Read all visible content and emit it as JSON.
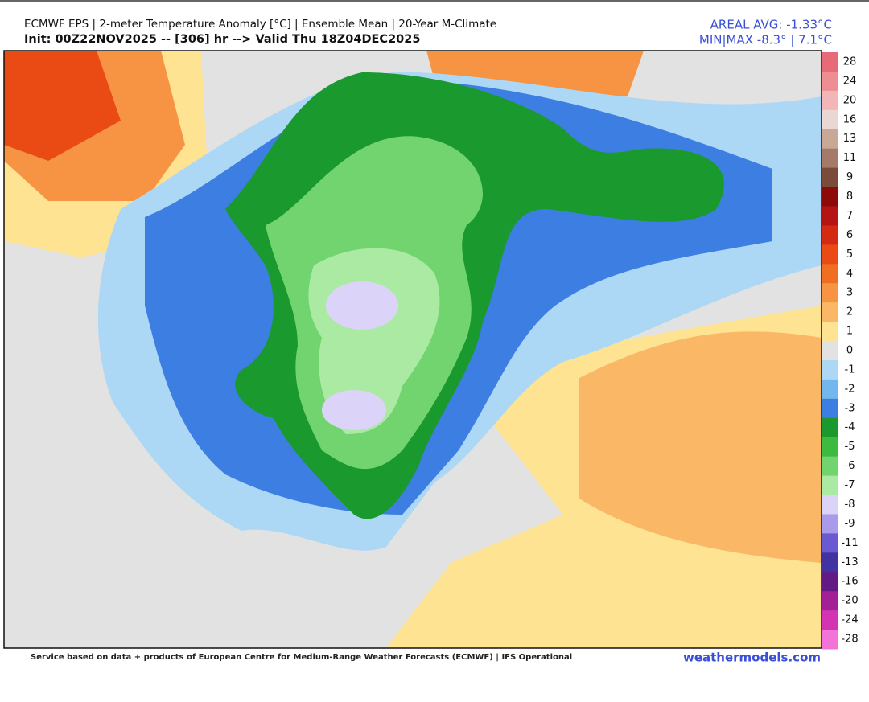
{
  "header": {
    "title": "ECMWF EPS | 2-meter Temperature Anomaly [°C] | Ensemble Mean | 20-Year M-Climate",
    "subtitle": "Init: 00Z22NOV2025 -- [306] hr --> Valid Thu 18Z04DEC2025",
    "areal_avg": "AREAL AVG: -1.33°C",
    "min_max": "MIN|MAX -8.3° | 7.1°C"
  },
  "colorbar": [
    {
      "label": 28,
      "color": "#e66a78"
    },
    {
      "label": 24,
      "color": "#ee8e92"
    },
    {
      "label": 20,
      "color": "#f3b6b6"
    },
    {
      "label": 16,
      "color": "#ead6d2"
    },
    {
      "label": 13,
      "color": "#c9a898"
    },
    {
      "label": 11,
      "color": "#a47a68"
    },
    {
      "label": 9,
      "color": "#7a4a3a"
    },
    {
      "label": 8,
      "color": "#8c0a0a"
    },
    {
      "label": 7,
      "color": "#b41414"
    },
    {
      "label": 6,
      "color": "#d42a12"
    },
    {
      "label": 5,
      "color": "#ea4a14"
    },
    {
      "label": 4,
      "color": "#f06e22"
    },
    {
      "label": 3,
      "color": "#f69444"
    },
    {
      "label": 2,
      "color": "#fab866"
    },
    {
      "label": 1,
      "color": "#fde392"
    },
    {
      "label": 0,
      "color": "#e2e2e2"
    },
    {
      "label": -1,
      "color": "#acd8f6"
    },
    {
      "label": -2,
      "color": "#74b6ee"
    },
    {
      "label": -3,
      "color": "#3c7ee2"
    },
    {
      "label": -4,
      "color": "#1a9a2e"
    },
    {
      "label": -5,
      "color": "#3eba40"
    },
    {
      "label": -6,
      "color": "#72d46e"
    },
    {
      "label": -7,
      "color": "#aaeaa2"
    },
    {
      "label": -8,
      "color": "#dcd4f8"
    },
    {
      "label": -9,
      "color": "#aa9aea"
    },
    {
      "label": -11,
      "color": "#6a5ad2"
    },
    {
      "label": -13,
      "color": "#4232a2"
    },
    {
      "label": -16,
      "color": "#641a84"
    },
    {
      "label": -20,
      "color": "#a22296"
    },
    {
      "label": -24,
      "color": "#d234b4"
    },
    {
      "label": -28,
      "color": "#f274d6"
    }
  ],
  "footer": {
    "credit": "Service based on data + products of European Centre for Medium-Range Weather Forecasts (ECMWF) | IFS Operational",
    "site": "weathermodels.com"
  }
}
